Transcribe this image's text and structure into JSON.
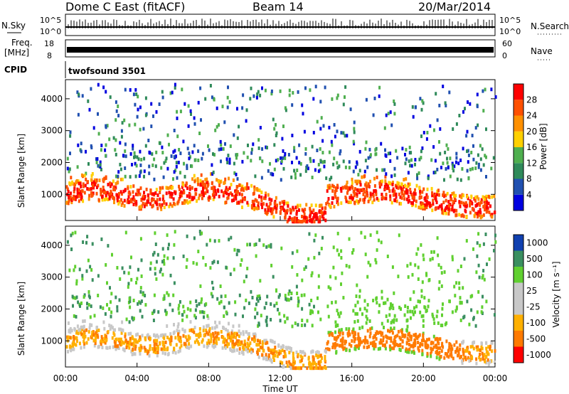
{
  "header": {
    "radar": "Dome C East (fitACF)",
    "beam": "Beam 14",
    "date": "20/Mar/2014"
  },
  "aux": {
    "nsky_label": "N.Sky",
    "nsky_ticks": [
      "10^5",
      "10^0"
    ],
    "nsearch_label": "N.Search",
    "nsearch_ticks": [
      "10^5",
      "10^0"
    ],
    "freq_label": "Freq.",
    "freq_unit": "[MHz]",
    "freq_ticks": [
      "18",
      "8"
    ],
    "nave_label": "Nave",
    "nave_ticks": [
      "60",
      "0"
    ],
    "cpid_label": "CPID",
    "cpid_value": "twofsound 3501"
  },
  "colors": {
    "power": [
      "#0000e0",
      "#2050b0",
      "#2f8a5a",
      "#4faf4f",
      "#ffd000",
      "#ff9000",
      "#ff5000",
      "#ff0000"
    ],
    "velocity": [
      "#ff0000",
      "#ff7a00",
      "#ffb000",
      "#c8c8c8",
      "#c8c8c8",
      "#60d030",
      "#3a8f60",
      "#1040b0"
    ]
  },
  "chart_data": [
    {
      "type": "line",
      "panel": "N.Sky / N.Search",
      "x": [
        "00:00",
        "04:00",
        "08:00",
        "12:00",
        "16:00",
        "20:00",
        "00:00"
      ],
      "log_scale": true,
      "yticks": [
        "10^0",
        "10^5"
      ]
    },
    {
      "type": "line",
      "panel": "Freq. / Nave",
      "yticks_left": [
        "8",
        "18"
      ],
      "yticks_right": [
        "0",
        "60"
      ]
    },
    {
      "type": "heatmap",
      "panel": "Power",
      "x": [
        "00:00",
        "04:00",
        "08:00",
        "12:00",
        "16:00",
        "20:00",
        "00:00"
      ],
      "xlim": [
        0,
        24
      ],
      "ylabel": "Slant Range [km]",
      "yticks": [
        1000,
        2000,
        3000,
        4000
      ],
      "ylim": [
        180,
        4600
      ],
      "colorbar_label": "Power [dB]",
      "colorbar_ticks": [
        "4",
        "8",
        "12",
        "16",
        "20",
        "24",
        "28"
      ]
    },
    {
      "type": "heatmap",
      "panel": "Velocity",
      "x": [
        "00:00",
        "04:00",
        "08:00",
        "12:00",
        "16:00",
        "20:00",
        "00:00"
      ],
      "xlim": [
        0,
        24
      ],
      "xlabel": "Time UT",
      "ylabel": "Slant Range [km]",
      "yticks": [
        1000,
        2000,
        3000,
        4000
      ],
      "ylim": [
        180,
        4600
      ],
      "colorbar_label": "Velocity [m s⁻¹]",
      "colorbar_ticks": [
        "1000",
        "500",
        "100",
        "25",
        "-25",
        "-100",
        "-500",
        "-1000"
      ]
    }
  ]
}
